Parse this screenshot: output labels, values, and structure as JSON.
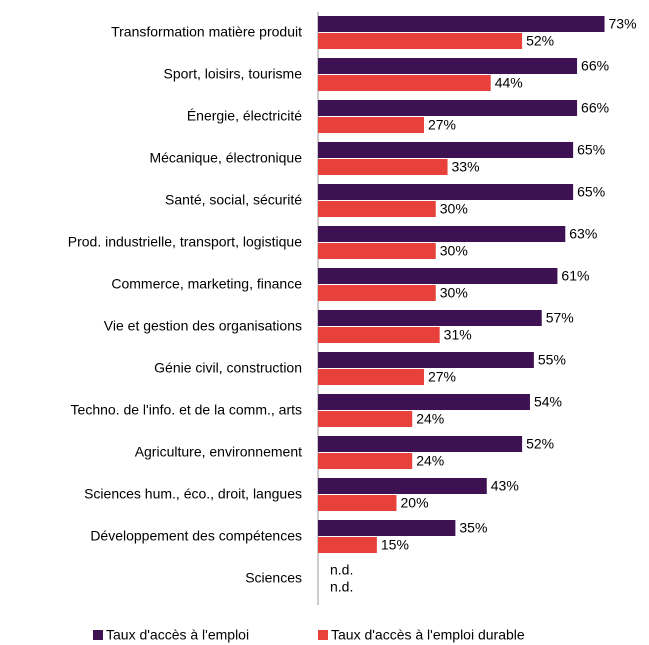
{
  "chart_data": {
    "type": "hbar",
    "categories": [
      "Transformation matière produit",
      "Sport, loisirs, tourisme",
      "Énergie, électricité",
      "Mécanique, électronique",
      "Santé, social, sécurité",
      "Prod. industrielle, transport, logistique",
      "Commerce, marketing, finance",
      "Vie et gestion des organisations",
      "Génie civil, construction",
      "Techno. de l'info. et de la comm., arts",
      "Agriculture, environnement",
      "Sciences hum., éco., droit, langues",
      "Développement des compétences",
      "Sciences"
    ],
    "series": [
      {
        "name": "Taux d'accès à l'emploi",
        "color": "#3d1152",
        "values": [
          73,
          66,
          66,
          65,
          65,
          63,
          61,
          57,
          55,
          54,
          52,
          43,
          35,
          null
        ],
        "value_labels": [
          "73%",
          "66%",
          "66%",
          "65%",
          "65%",
          "63%",
          "61%",
          "57%",
          "55%",
          "54%",
          "52%",
          "43%",
          "35%",
          "n.d."
        ]
      },
      {
        "name": "Taux d'accès à l'emploi durable",
        "color": "#e8403a",
        "values": [
          52,
          44,
          27,
          33,
          30,
          30,
          30,
          31,
          27,
          24,
          24,
          20,
          15,
          null
        ],
        "value_labels": [
          "52%",
          "44%",
          "27%",
          "33%",
          "30%",
          "30%",
          "30%",
          "31%",
          "27%",
          "24%",
          "24%",
          "20%",
          "15%",
          "n.d."
        ]
      }
    ],
    "xlim": [
      0,
      80
    ],
    "legend": "bottom"
  }
}
